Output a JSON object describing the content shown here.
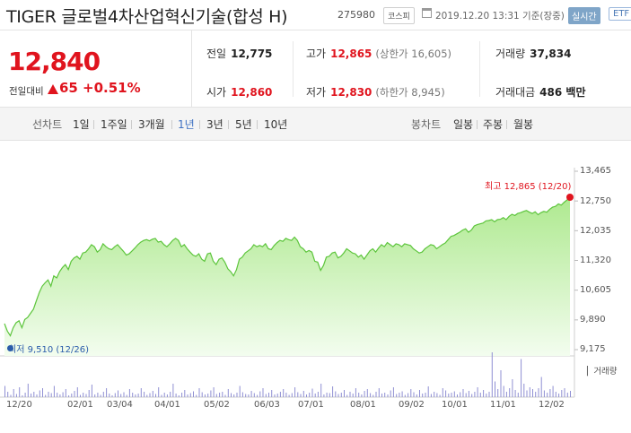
{
  "header": {
    "title": "TIGER 글로벌4차산업혁신기술(합성 H)",
    "code": "275980",
    "market": "코스피",
    "datetime": "2019.12.20 13:31 기준(장중)",
    "realtime": "실시간",
    "etf": "ETF"
  },
  "quote": {
    "price": "12,840",
    "change_label": "전일대비",
    "change": "65",
    "change_pct": "+0.51%"
  },
  "stats": {
    "prev_close_label": "전일",
    "prev_close": "12,775",
    "high_label": "고가",
    "high": "12,865",
    "high_limit": "(상한가 16,605)",
    "volume_label": "거래량",
    "volume": "37,834",
    "open_label": "시가",
    "open": "12,860",
    "low_label": "저가",
    "low": "12,830",
    "low_limit": "(하한가 8,945)",
    "amount_label": "거래대금",
    "amount": "486 백만"
  },
  "tabs": {
    "line_chart_label": "선차트",
    "periods": [
      "1일",
      "1주일",
      "3개월",
      "1년",
      "3년",
      "5년",
      "10년"
    ],
    "active_period": "1년",
    "candle_chart_label": "봉차트",
    "candles": [
      "일봉",
      "주봉",
      "월봉"
    ]
  },
  "colors": {
    "up": "#e0141e",
    "line": "#5dc53c",
    "fill_top": "#aee98f",
    "fill_bottom": "#f3fdef",
    "volume": "#8f8fd3",
    "active_tab": "#3e70c2",
    "low_marker": "#2a5caa"
  },
  "chart_data": {
    "type": "area",
    "y_ticks": [
      "13,465",
      "12,750",
      "12,035",
      "11,320",
      "10,605",
      "9,890",
      "9,175"
    ],
    "ylim": [
      9175,
      13465
    ],
    "x_ticks": [
      "12/20",
      "02/01",
      "03/04",
      "04/01",
      "05/02",
      "06/03",
      "07/01",
      "08/01",
      "09/02",
      "10/01",
      "11/01",
      "12/02"
    ],
    "high_label": "최고 12,865 (12/20)",
    "low_label": "최저 9,510 (12/26)",
    "volume_label": "거래량",
    "series": [
      {
        "values": [
          9800,
          9620,
          9510,
          9700,
          9820,
          9870,
          9700,
          9900,
          9950,
          10050,
          10150,
          10350,
          10550,
          10700,
          10780,
          10850,
          10700,
          10950,
          10900,
          11050,
          11150,
          11220,
          11100,
          11300,
          11380,
          11420,
          11350,
          11500,
          11520,
          11600,
          11700,
          11650,
          11520,
          11580,
          11720,
          11650,
          11600,
          11580,
          11650,
          11700,
          11620,
          11540,
          11450,
          11480,
          11550,
          11620,
          11700,
          11760,
          11800,
          11820,
          11790,
          11830,
          11850,
          11760,
          11780,
          11700,
          11650,
          11720,
          11800,
          11850,
          11800,
          11650,
          11700,
          11600,
          11520,
          11450,
          11420,
          11480,
          11350,
          11300,
          11480,
          11500,
          11300,
          11220,
          11350,
          11380,
          11280,
          11120,
          11050,
          10950,
          11100,
          11350,
          11400,
          11500,
          11550,
          11600,
          11700,
          11650,
          11680,
          11650,
          11720,
          11600,
          11580,
          11680,
          11750,
          11800,
          11780,
          11850,
          11820,
          11800,
          11880,
          11800,
          11650,
          11600,
          11520,
          11560,
          11520,
          11300,
          11280,
          11080,
          11200,
          11400,
          11420,
          11500,
          11520,
          11380,
          11420,
          11500,
          11600,
          11550,
          11500,
          11480,
          11400,
          11450,
          11350,
          11450,
          11550,
          11600,
          11520,
          11620,
          11700,
          11650,
          11750,
          11700,
          11650,
          11720,
          11700,
          11650,
          11720,
          11700,
          11680,
          11600,
          11550,
          11500,
          11520,
          11600,
          11650,
          11700,
          11680,
          11600,
          11650,
          11700,
          11740,
          11820,
          11900,
          11920,
          11960,
          12000,
          12050,
          12080,
          12000,
          12050,
          12150,
          12180,
          12200,
          12220,
          12270,
          12280,
          12300,
          12250,
          12300,
          12310,
          12350,
          12300,
          12380,
          12430,
          12400,
          12450,
          12470,
          12500,
          12520,
          12480,
          12450,
          12490,
          12420,
          12470,
          12500,
          12480,
          12550,
          12600,
          12620,
          12680,
          12650,
          12720,
          12775,
          12840
        ]
      }
    ],
    "volume": [
      0.25,
      0.12,
      0.05,
      0.18,
      0.07,
      0.22,
      0.04,
      0.1,
      0.3,
      0.08,
      0.12,
      0.06,
      0.15,
      0.2,
      0.05,
      0.12,
      0.09,
      0.25,
      0.1,
      0.06,
      0.11,
      0.18,
      0.04,
      0.08,
      0.14,
      0.22,
      0.05,
      0.1,
      0.07,
      0.16,
      0.28,
      0.06,
      0.1,
      0.05,
      0.12,
      0.2,
      0.08,
      0.04,
      0.09,
      0.15,
      0.07,
      0.11,
      0.05,
      0.18,
      0.1,
      0.06,
      0.08,
      0.2,
      0.12,
      0.05,
      0.09,
      0.14,
      0.07,
      0.22,
      0.05,
      0.1,
      0.06,
      0.12,
      0.3,
      0.08,
      0.04,
      0.1,
      0.16,
      0.06,
      0.09,
      0.13,
      0.05,
      0.2,
      0.11,
      0.06,
      0.08,
      0.15,
      0.22,
      0.07,
      0.1,
      0.12,
      0.05,
      0.18,
      0.09,
      0.06,
      0.1,
      0.25,
      0.11,
      0.07,
      0.06,
      0.14,
      0.09,
      0.05,
      0.13,
      0.2,
      0.07,
      0.1,
      0.16,
      0.06,
      0.08,
      0.12,
      0.18,
      0.1,
      0.05,
      0.09,
      0.22,
      0.11,
      0.07,
      0.14,
      0.06,
      0.1,
      0.19,
      0.08,
      0.12,
      0.3,
      0.06,
      0.1,
      0.09,
      0.24,
      0.13,
      0.07,
      0.1,
      0.16,
      0.05,
      0.12,
      0.08,
      0.2,
      0.1,
      0.06,
      0.14,
      0.18,
      0.09,
      0.05,
      0.12,
      0.2,
      0.08,
      0.1,
      0.06,
      0.15,
      0.22,
      0.07,
      0.1,
      0.13,
      0.05,
      0.09,
      0.18,
      0.11,
      0.06,
      0.16,
      0.08,
      0.1,
      0.24,
      0.07,
      0.12,
      0.09,
      0.05,
      0.2,
      0.15,
      0.08,
      0.1,
      0.13,
      0.06,
      0.11,
      0.18,
      0.09,
      0.14,
      0.07,
      0.12,
      0.22,
      0.1,
      0.16,
      0.08,
      0.12,
      1.0,
      0.35,
      0.18,
      0.6,
      0.25,
      0.12,
      0.2,
      0.4,
      0.16,
      0.1,
      0.85,
      0.3,
      0.15,
      0.22,
      0.18,
      0.12,
      0.2,
      0.45,
      0.15,
      0.1,
      0.18,
      0.25,
      0.12,
      0.08,
      0.16,
      0.2,
      0.1,
      0.14
    ]
  }
}
